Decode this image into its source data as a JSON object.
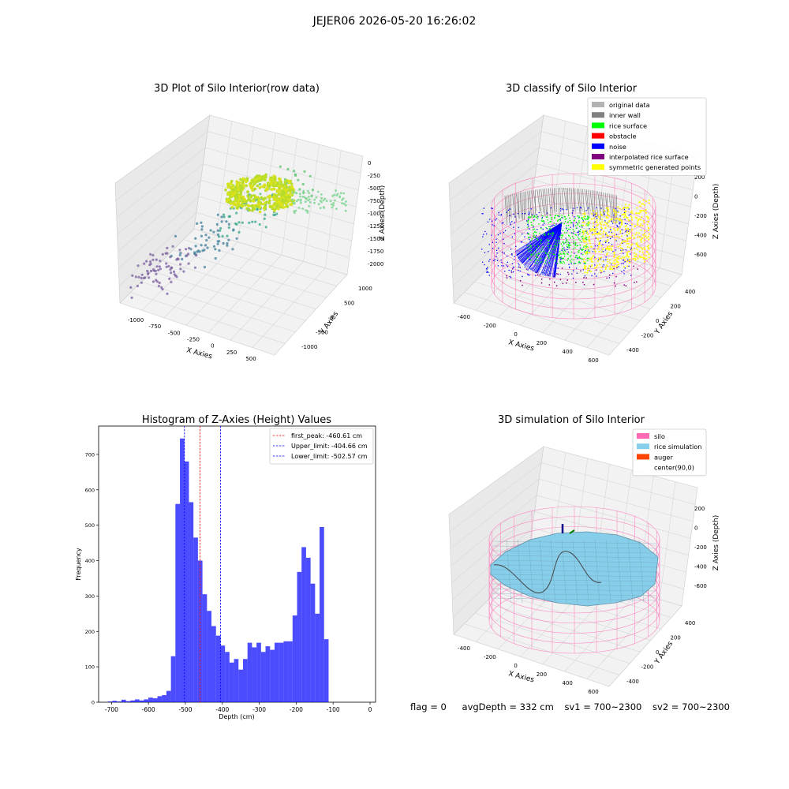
{
  "suptitle": "JEJER06 2026-05-20 16:26:02",
  "panels": {
    "p1": {
      "title": "3D Plot of Silo Interior(row data)",
      "xlabel": "X Axies",
      "ylabel": "Y Axies",
      "zlabel": "Z Axies (Depth)",
      "xticks": [
        "-1000",
        "-750",
        "-500",
        "-250",
        "0",
        "250",
        "500"
      ],
      "yticks": [
        "-1000",
        "-500",
        "0",
        "500",
        "1000"
      ],
      "zticks": [
        "0",
        "-250",
        "-500",
        "-750",
        "-1000",
        "-1250",
        "-1500",
        "-1750",
        "-2000"
      ]
    },
    "p2": {
      "title": "3D classify of Silo Interior",
      "xlabel": "X Axies",
      "ylabel": "Y Axies",
      "zlabel": "Z Axies (Depth)",
      "xticks": [
        "-400",
        "-200",
        "0",
        "200",
        "400",
        "600"
      ],
      "yticks": [
        "-400",
        "-200",
        "0",
        "200",
        "400"
      ],
      "zticks": [
        "200",
        "0",
        "-200",
        "-400",
        "-600"
      ],
      "legend": [
        {
          "label": "original data",
          "color": "#b3b3b3"
        },
        {
          "label": "inner wall",
          "color": "#808080"
        },
        {
          "label": "rice surface",
          "color": "#00ff00"
        },
        {
          "label": "obstacle",
          "color": "#ff0000"
        },
        {
          "label": "noise",
          "color": "#0000ff"
        },
        {
          "label": "interpolated rice surface",
          "color": "#800080"
        },
        {
          "label": "symmetric generated points",
          "color": "#ffff00"
        }
      ]
    },
    "p4": {
      "title": "3D simulation of Silo Interior",
      "xlabel": "X Axies",
      "ylabel": "Y Axies",
      "zlabel": "Z Axies (Depth)",
      "xticks": [
        "-400",
        "-200",
        "0",
        "200",
        "400",
        "600"
      ],
      "yticks": [
        "-400",
        "-200",
        "0",
        "200",
        "400"
      ],
      "zticks": [
        "200",
        "0",
        "-200",
        "-400",
        "-600"
      ],
      "legend": [
        {
          "label": "silo",
          "color": "#ff69b4"
        },
        {
          "label": "rice simulation",
          "color": "#87ceeb"
        },
        {
          "label": "auger",
          "color": "#ff4500"
        },
        {
          "label": "center(90,0)",
          "color": ""
        }
      ]
    }
  },
  "chart_data": {
    "type": "bar",
    "title": "Histogram of Z-Axies (Height) Values",
    "xlabel": "Depth (cm)",
    "ylabel": "Frequency",
    "xlim": [
      -735,
      15
    ],
    "ylim": [
      0,
      780
    ],
    "xticks": [
      -700,
      -600,
      -500,
      -400,
      -300,
      -200,
      -100,
      0
    ],
    "yticks": [
      0,
      100,
      200,
      300,
      400,
      500,
      600,
      700
    ],
    "bin_width": 12.2,
    "bin_start": -710,
    "values": [
      2,
      4,
      2,
      7,
      3,
      5,
      8,
      5,
      8,
      13,
      11,
      17,
      20,
      32,
      130,
      560,
      745,
      680,
      565,
      465,
      400,
      305,
      258,
      215,
      188,
      160,
      142,
      112,
      122,
      92,
      122,
      168,
      155,
      168,
      142,
      158,
      148,
      168,
      168,
      172,
      172,
      245,
      368,
      438,
      408,
      335,
      250,
      495,
      178
    ],
    "bar_color": "#0000ff",
    "vlines": [
      {
        "label": "first_peak: -460.61 cm",
        "x": -460.61,
        "color": "#ff0000"
      },
      {
        "label": "Upper_limit: -404.66 cm",
        "x": -404.66,
        "color": "#0000ff"
      },
      {
        "label": "Lower_limit: -502.57 cm",
        "x": -502.57,
        "color": "#0000ff"
      }
    ],
    "legend_position": "upper-right"
  },
  "footer": {
    "flag": "flag = 0",
    "avg": "avgDepth = 332 cm",
    "sv1": "sv1 = 700~2300",
    "sv2": "sv2 = 700~2300"
  }
}
